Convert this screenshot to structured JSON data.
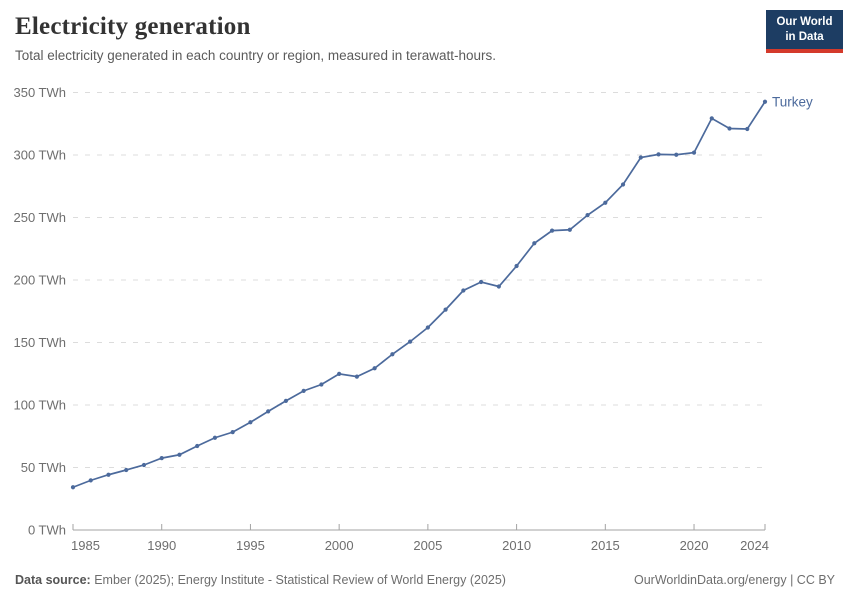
{
  "header": {
    "title": "Electricity generation",
    "subtitle": "Total electricity generated in each country or region, measured in terawatt-hours.",
    "logo": {
      "line1": "Our World",
      "line2": "in Data",
      "bg_color": "#1d3d63",
      "stripe_color": "#d43a2b"
    }
  },
  "chart_data": {
    "type": "line",
    "title": "Electricity generation",
    "subtitle": "Total electricity generated in each country or region, measured in terawatt-hours.",
    "xlabel": "",
    "ylabel": "",
    "xlim": [
      1985,
      2024
    ],
    "ylim": [
      0,
      350
    ],
    "y_ticks": [
      0,
      50,
      100,
      150,
      200,
      250,
      300,
      350
    ],
    "y_tick_suffix": " TWh",
    "x_ticks": [
      1985,
      1990,
      1995,
      2000,
      2005,
      2010,
      2015,
      2020,
      2024
    ],
    "grid": "horizontal-dashed",
    "legend_position": "end-of-line-label",
    "series": [
      {
        "name": "Turkey",
        "color": "#4c6a9c",
        "x": [
          1985,
          1986,
          1987,
          1988,
          1989,
          1990,
          1991,
          1992,
          1993,
          1994,
          1995,
          1996,
          1997,
          1998,
          1999,
          2000,
          2001,
          2002,
          2003,
          2004,
          2005,
          2006,
          2007,
          2008,
          2009,
          2010,
          2011,
          2012,
          2013,
          2014,
          2015,
          2016,
          2017,
          2018,
          2019,
          2020,
          2021,
          2022,
          2023,
          2024
        ],
        "values": [
          34.2,
          39.7,
          44.2,
          48.0,
          52.0,
          57.5,
          60.2,
          67.2,
          73.8,
          78.3,
          86.2,
          94.9,
          103.3,
          111.3,
          116.4,
          124.9,
          122.7,
          129.4,
          140.6,
          150.7,
          162.0,
          176.3,
          191.6,
          198.4,
          194.8,
          211.2,
          229.4,
          239.5,
          240.2,
          251.9,
          261.8,
          276.4,
          298.0,
          300.5,
          300.2,
          301.9,
          329.3,
          321.2,
          320.8,
          342.6
        ]
      }
    ]
  },
  "footer": {
    "source_label": "Data source:",
    "source_text": " Ember (2025); Energy Institute - Statistical Review of World Energy (2025)",
    "credit": "OurWorldinData.org/energy | CC BY"
  }
}
